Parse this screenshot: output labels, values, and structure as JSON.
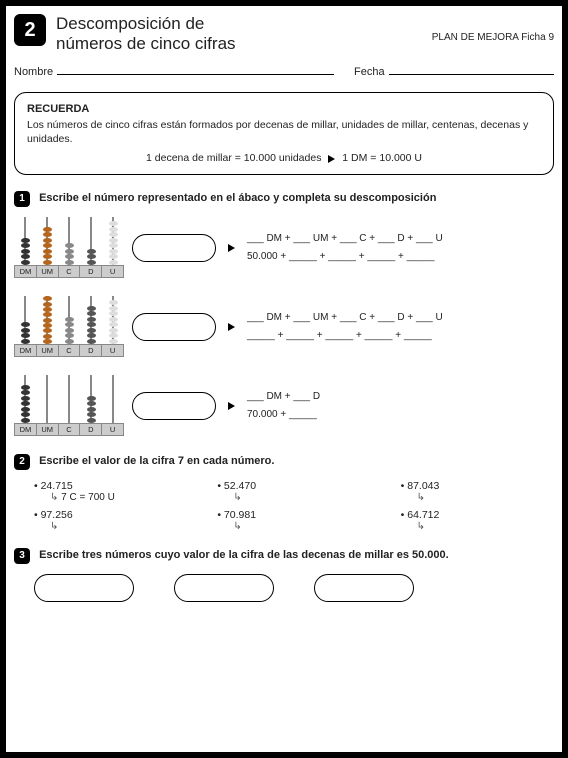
{
  "header": {
    "number": "2",
    "title_line1": "Descomposición de",
    "title_line2": "números de cinco cifras",
    "plan_label": "PLAN DE MEJORA  Ficha",
    "plan_num": "9"
  },
  "name_row": {
    "nombre": "Nombre",
    "fecha": "Fecha"
  },
  "recuerda": {
    "title": "RECUERDA",
    "body": "Los números de cinco cifras están formados por decenas de millar, unidades de millar, centenas, decenas y unidades.",
    "center_left": "1 decena de millar = 10.000 unidades",
    "center_right": "1 DM = 10.000 U"
  },
  "q1": {
    "num": "1",
    "text": "Escribe el número representado en el ábaco y completa su descomposición",
    "labels": [
      "DM",
      "UM",
      "C",
      "D",
      "U"
    ],
    "bead_colors": {
      "DM": "#333333",
      "UM": "#b5651d",
      "C": "#888888",
      "D": "#555555",
      "U": "#dddddd"
    },
    "rows": [
      {
        "beads": [
          5,
          7,
          4,
          3,
          8
        ],
        "line1": "___ DM + ___ UM + ___ C + ___ D + ___ U",
        "line2": "50.000 + _____ + _____ + _____ + _____"
      },
      {
        "beads": [
          4,
          9,
          5,
          7,
          8
        ],
        "line1": "___ DM + ___ UM + ___ C + ___ D + ___ U",
        "line2": "_____ + _____ + _____ + _____ + _____"
      },
      {
        "beads": [
          7,
          0,
          0,
          5,
          0
        ],
        "line1": "___ DM + ___ D",
        "line2": "70.000 + _____"
      }
    ]
  },
  "q2": {
    "num": "2",
    "text": "Escribe el valor de la cifra 7 en cada número.",
    "items": [
      {
        "n": "24.715",
        "sub": "7 C = 700 U"
      },
      {
        "n": "52.470",
        "sub": ""
      },
      {
        "n": "87.043",
        "sub": ""
      },
      {
        "n": "97.256",
        "sub": ""
      },
      {
        "n": "70.981",
        "sub": ""
      },
      {
        "n": "64.712",
        "sub": ""
      }
    ]
  },
  "q3": {
    "num": "3",
    "text": "Escribe tres números cuyo valor de la cifra de las decenas de millar es 50.000."
  }
}
